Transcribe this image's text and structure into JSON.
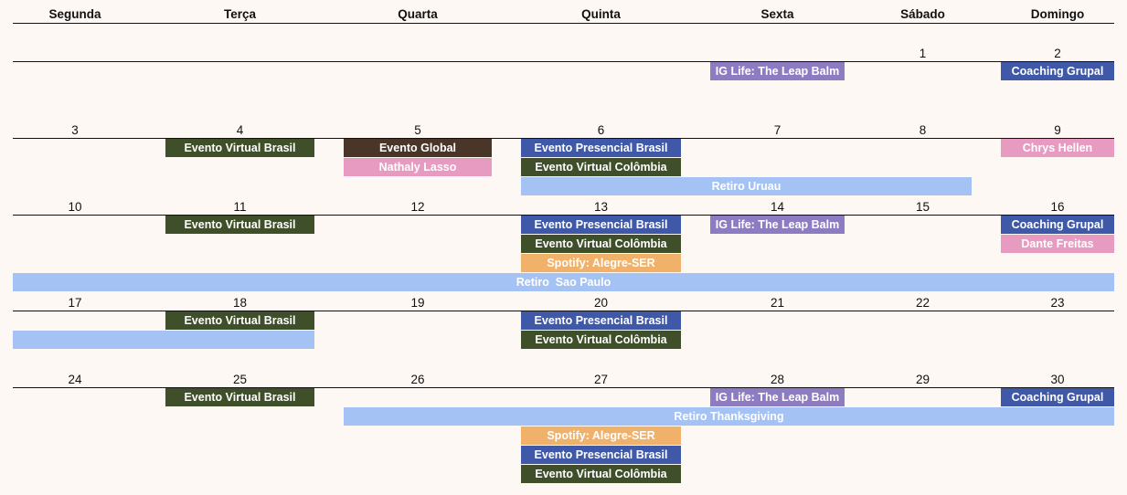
{
  "weekdays": [
    "Segunda",
    "Terça",
    "Quarta",
    "Quinta",
    "Sexta",
    "Sábado",
    "Domingo"
  ],
  "colors": {
    "blue": "#3f59a8",
    "green": "#3f4f2a",
    "purple": "#8e7cc3",
    "pink": "#e89bc1",
    "lightblue": "#a4c2f4",
    "orange": "#f0b26b",
    "brown": "#4a3529"
  },
  "weeks": [
    {
      "days": [
        null,
        null,
        null,
        null,
        null,
        "1",
        "2"
      ],
      "events": [
        {
          "title": "IG Life: The Leap Balm",
          "from": 4,
          "to": 4,
          "lane": 0,
          "color": "purple"
        },
        {
          "title": "Coaching Grupal",
          "from": 6,
          "to": 6,
          "lane": 0,
          "color": "blue"
        }
      ]
    },
    {
      "days": [
        "3",
        "4",
        "5",
        "6",
        "7",
        "8",
        "9"
      ],
      "events": [
        {
          "title": "Evento Virtual Brasil",
          "from": 1,
          "to": 1,
          "lane": 0,
          "color": "green"
        },
        {
          "title": "Evento Global",
          "from": 2,
          "to": 2,
          "lane": 0,
          "color": "brown"
        },
        {
          "title": "Nathaly Lasso",
          "from": 2,
          "to": 2,
          "lane": 1,
          "color": "pink"
        },
        {
          "title": "Evento Presencial Brasil",
          "from": 3,
          "to": 3,
          "lane": 0,
          "color": "blue"
        },
        {
          "title": "Evento Virtual Colômbia",
          "from": 3,
          "to": 3,
          "lane": 1,
          "color": "green"
        },
        {
          "title": "Retiro Uruau",
          "from": 3,
          "to": 5,
          "lane": 2,
          "color": "lightblue"
        },
        {
          "title": "Chrys Hellen",
          "from": 6,
          "to": 6,
          "lane": 0,
          "color": "pink"
        }
      ]
    },
    {
      "days": [
        "10",
        "11",
        "12",
        "13",
        "14",
        "15",
        "16"
      ],
      "events": [
        {
          "title": "Evento Virtual Brasil",
          "from": 1,
          "to": 1,
          "lane": 0,
          "color": "green"
        },
        {
          "title": "Evento Presencial Brasil",
          "from": 3,
          "to": 3,
          "lane": 0,
          "color": "blue"
        },
        {
          "title": "Evento Virtual Colômbia",
          "from": 3,
          "to": 3,
          "lane": 1,
          "color": "green"
        },
        {
          "title": "Spotify: Alegre-SER",
          "from": 3,
          "to": 3,
          "lane": 2,
          "color": "orange"
        },
        {
          "title": "IG Life: The Leap Balm",
          "from": 4,
          "to": 4,
          "lane": 0,
          "color": "purple"
        },
        {
          "title": "Coaching Grupal",
          "from": 6,
          "to": 6,
          "lane": 0,
          "color": "blue"
        },
        {
          "title": "Dante Freitas",
          "from": 6,
          "to": 6,
          "lane": 1,
          "color": "pink"
        },
        {
          "title": "Retiro  Sao Paulo",
          "from": 0,
          "to": 6,
          "lane": 3,
          "color": "lightblue"
        }
      ]
    },
    {
      "days": [
        "17",
        "18",
        "19",
        "20",
        "21",
        "22",
        "23"
      ],
      "events": [
        {
          "title": "Evento Virtual Brasil",
          "from": 1,
          "to": 1,
          "lane": 0,
          "color": "green"
        },
        {
          "title": "",
          "from": 0,
          "to": 1,
          "lane": 1,
          "color": "lightblue"
        },
        {
          "title": "Evento Presencial Brasil",
          "from": 3,
          "to": 3,
          "lane": 0,
          "color": "blue"
        },
        {
          "title": "Evento Virtual Colômbia",
          "from": 3,
          "to": 3,
          "lane": 1,
          "color": "green"
        }
      ]
    },
    {
      "days": [
        "24",
        "25",
        "26",
        "27",
        "28",
        "29",
        "30"
      ],
      "events": [
        {
          "title": "Evento Virtual Brasil",
          "from": 1,
          "to": 1,
          "lane": 0,
          "color": "green"
        },
        {
          "title": "IG Life: The Leap Balm",
          "from": 4,
          "to": 4,
          "lane": 0,
          "color": "purple"
        },
        {
          "title": "Coaching Grupal",
          "from": 6,
          "to": 6,
          "lane": 0,
          "color": "blue"
        },
        {
          "title": "Retiro Thanksgiving",
          "from": 2,
          "to": 6,
          "lane": 1,
          "color": "lightblue"
        },
        {
          "title": "Spotify: Alegre-SER",
          "from": 3,
          "to": 3,
          "lane": 2,
          "color": "orange"
        },
        {
          "title": "Evento Presencial Brasil",
          "from": 3,
          "to": 3,
          "lane": 3,
          "color": "blue"
        },
        {
          "title": "Evento Virtual Colômbia",
          "from": 3,
          "to": 3,
          "lane": 4,
          "color": "green"
        }
      ]
    }
  ]
}
